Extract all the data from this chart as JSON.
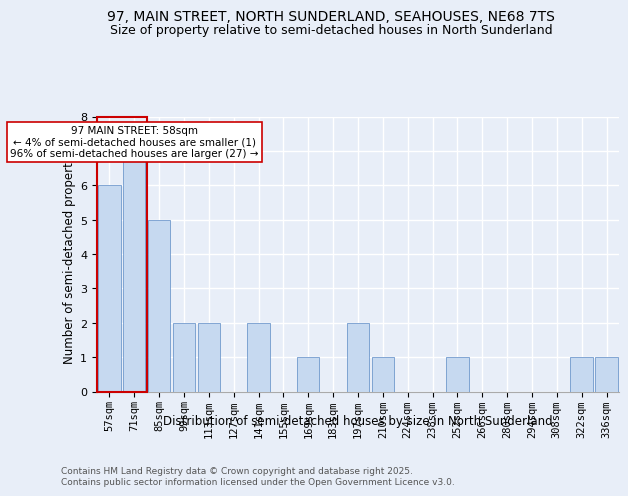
{
  "title1": "97, MAIN STREET, NORTH SUNDERLAND, SEAHOUSES, NE68 7TS",
  "title2": "Size of property relative to semi-detached houses in North Sunderland",
  "xlabel": "Distribution of semi-detached houses by size in North Sunderland",
  "ylabel": "Number of semi-detached properties",
  "categories": [
    "57sqm",
    "71sqm",
    "85sqm",
    "99sqm",
    "113sqm",
    "127sqm",
    "141sqm",
    "155sqm",
    "169sqm",
    "183sqm",
    "197sqm",
    "210sqm",
    "224sqm",
    "238sqm",
    "252sqm",
    "266sqm",
    "280sqm",
    "294sqm",
    "308sqm",
    "322sqm",
    "336sqm"
  ],
  "values": [
    6,
    7,
    5,
    2,
    2,
    0,
    2,
    0,
    1,
    0,
    2,
    1,
    0,
    0,
    1,
    0,
    0,
    0,
    0,
    1,
    1
  ],
  "bar_color": "#c6d9f0",
  "bar_edge_color": "#5b8ac5",
  "annotation_text": "97 MAIN STREET: 58sqm\n← 4% of semi-detached houses are smaller (1)\n96% of semi-detached houses are larger (27) →",
  "annotation_box_color": "#ffffff",
  "annotation_box_edge_color": "#cc0000",
  "footer": "Contains HM Land Registry data © Crown copyright and database right 2025.\nContains public sector information licensed under the Open Government Licence v3.0.",
  "ylim": [
    0,
    8
  ],
  "yticks": [
    0,
    1,
    2,
    3,
    4,
    5,
    6,
    7,
    8
  ],
  "bg_color": "#e8eef8",
  "plot_bg_color": "#e8eef8",
  "grid_color": "#ffffff",
  "title_fontsize": 10,
  "subtitle_fontsize": 9,
  "axis_label_fontsize": 8.5,
  "tick_fontsize": 7.5,
  "footer_fontsize": 6.5
}
